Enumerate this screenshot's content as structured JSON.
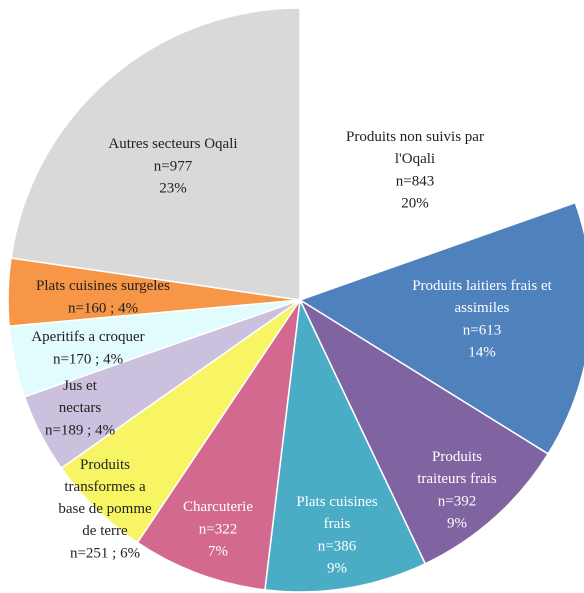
{
  "chart_data": {
    "type": "pie",
    "categories": [
      "Produits non suivis par l'Oqali",
      "Produits laitiers frais et assimiles",
      "Produits traiteurs frais",
      "Plats cuisines frais",
      "Charcuterie",
      "Produits transformes a base de pomme de terre",
      "Jus et nectars",
      "Aperitifs a croquer",
      "Plats cuisines surgeles",
      "Autres secteurs Oqali"
    ],
    "values": [
      843,
      613,
      392,
      386,
      322,
      251,
      189,
      170,
      160,
      977
    ],
    "value_labels": [
      [
        "n=843",
        "20%"
      ],
      [
        "n=613",
        "14%"
      ],
      [
        "n=392",
        "9%"
      ],
      [
        "n=386",
        "9%"
      ],
      [
        "n=322",
        "7%"
      ],
      [
        "n=251 ; 6%"
      ],
      [
        "n=189 ; 4%"
      ],
      [
        "n=170 ; 4%"
      ],
      [
        "n=160 ; 4%"
      ],
      [
        "n=977",
        "23%"
      ]
    ],
    "colors": [
      "#ffffff",
      "#4f81bd",
      "#8064a2",
      "#4bacc6",
      "#d3698f",
      "#f8f565",
      "#cbc0de",
      "#e2fbfd",
      "#f79646",
      "#d9d9d9"
    ]
  }
}
